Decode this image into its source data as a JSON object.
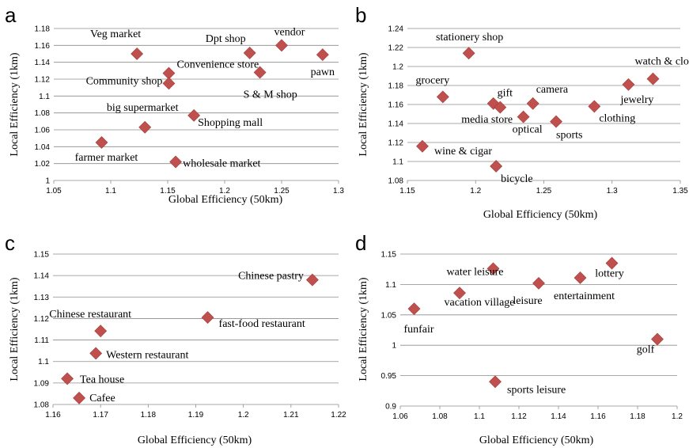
{
  "marker_color": "#c0504d",
  "chart_data": [
    {
      "panel": "a",
      "type": "scatter",
      "xlabel": "Global Efficiency (50km)",
      "ylabel": "Local Efficiency (1km)",
      "xlim": [
        1.05,
        1.3
      ],
      "ylim": [
        1.0,
        1.18
      ],
      "xticks": [
        "1.05",
        "1.1",
        "1.15",
        "1.2",
        "1.25",
        "1.3"
      ],
      "yticks": [
        "1",
        "1.02",
        "1.04",
        "1.06",
        "1.08",
        "1.1",
        "1.12",
        "1.14",
        "1.16",
        "1.18"
      ],
      "grid": "horizontal",
      "points": [
        {
          "label": "Veg market",
          "x": 1.123,
          "y": 1.15
        },
        {
          "label": "Convenience store",
          "x": 1.151,
          "y": 1.127
        },
        {
          "label": "Community shop",
          "x": 1.151,
          "y": 1.115
        },
        {
          "label": "big supermarket",
          "x": 1.13,
          "y": 1.063
        },
        {
          "label": "farmer market",
          "x": 1.092,
          "y": 1.045
        },
        {
          "label": "Shopping mall",
          "x": 1.173,
          "y": 1.077
        },
        {
          "label": "wholesale market",
          "x": 1.157,
          "y": 1.022
        },
        {
          "label": "Dpt shop",
          "x": 1.222,
          "y": 1.151
        },
        {
          "label": "vendor",
          "x": 1.25,
          "y": 1.16
        },
        {
          "label": "S & M shop",
          "x": 1.231,
          "y": 1.128
        },
        {
          "label": "pawn",
          "x": 1.286,
          "y": 1.149
        }
      ]
    },
    {
      "panel": "b",
      "type": "scatter",
      "xlabel": "Global Efficiency (50km)",
      "ylabel": "Local Efficiency (1km)",
      "xlim": [
        1.15,
        1.35
      ],
      "ylim": [
        1.08,
        1.24
      ],
      "xticks": [
        "1.15",
        "1.2",
        "1.25",
        "1.3",
        "1.35"
      ],
      "yticks": [
        "1.08",
        "1.1",
        "1.12",
        "1.14",
        "1.16",
        "1.18",
        "1.2",
        "1.22",
        "1.24"
      ],
      "grid": "horizontal",
      "points": [
        {
          "label": "stationery shop",
          "x": 1.195,
          "y": 1.214
        },
        {
          "label": "grocery",
          "x": 1.176,
          "y": 1.168
        },
        {
          "label": "media store",
          "x": 1.213,
          "y": 1.161
        },
        {
          "label": "gift",
          "x": 1.218,
          "y": 1.157
        },
        {
          "label": "camera",
          "x": 1.242,
          "y": 1.161
        },
        {
          "label": "optical",
          "x": 1.235,
          "y": 1.147
        },
        {
          "label": "sports",
          "x": 1.259,
          "y": 1.142
        },
        {
          "label": "clothing",
          "x": 1.287,
          "y": 1.158
        },
        {
          "label": "watch & clock",
          "x": 1.33,
          "y": 1.187
        },
        {
          "label": "jewelry",
          "x": 1.312,
          "y": 1.181
        },
        {
          "label": "wine & cigar",
          "x": 1.161,
          "y": 1.116
        },
        {
          "label": "bicycle",
          "x": 1.215,
          "y": 1.095
        }
      ]
    },
    {
      "panel": "c",
      "type": "scatter",
      "xlabel": "Global Efficiency (50km)",
      "ylabel": "Local Efficiency (1km)",
      "xlim": [
        1.16,
        1.22
      ],
      "ylim": [
        1.08,
        1.15
      ],
      "xticks": [
        "1.16",
        "1.17",
        "1.18",
        "1.19",
        "1.2",
        "1.21",
        "1.22"
      ],
      "yticks": [
        "1.08",
        "1.09",
        "1.1",
        "1.11",
        "1.12",
        "1.13",
        "1.14",
        "1.15"
      ],
      "grid": "horizontal",
      "points": [
        {
          "label": "Chinese pastry",
          "x": 1.2145,
          "y": 1.138
        },
        {
          "label": "fast-food restaurant",
          "x": 1.1925,
          "y": 1.1205
        },
        {
          "label": "Chinese restaurant",
          "x": 1.17,
          "y": 1.1142
        },
        {
          "label": "Western restaurant",
          "x": 1.169,
          "y": 1.1038
        },
        {
          "label": "Tea house",
          "x": 1.163,
          "y": 1.092
        },
        {
          "label": "Cafee",
          "x": 1.1655,
          "y": 1.083
        }
      ]
    },
    {
      "panel": "d",
      "type": "scatter",
      "xlabel": "Global Efficiency (50km)",
      "ylabel": "Local Efficiency (1km)",
      "xlim": [
        1.06,
        1.2
      ],
      "ylim": [
        0.9,
        1.15
      ],
      "xticks": [
        "1.06",
        "1.08",
        "1.1",
        "1.12",
        "1.14",
        "1.16",
        "1.18",
        "1.2"
      ],
      "yticks": [
        "0.9",
        "0.95",
        "1",
        "1.05",
        "1.1",
        "1.15"
      ],
      "grid": "horizontal",
      "points": [
        {
          "label": "water leisure",
          "x": 1.107,
          "y": 1.126
        },
        {
          "label": "leisure",
          "x": 1.13,
          "y": 1.102
        },
        {
          "label": "entertainment",
          "x": 1.151,
          "y": 1.111
        },
        {
          "label": "lottery",
          "x": 1.167,
          "y": 1.135
        },
        {
          "label": "vacation village",
          "x": 1.09,
          "y": 1.086
        },
        {
          "label": "funfair",
          "x": 1.067,
          "y": 1.06
        },
        {
          "label": "golf",
          "x": 1.19,
          "y": 1.01
        },
        {
          "label": "sports leisure",
          "x": 1.108,
          "y": 0.94
        }
      ]
    }
  ]
}
